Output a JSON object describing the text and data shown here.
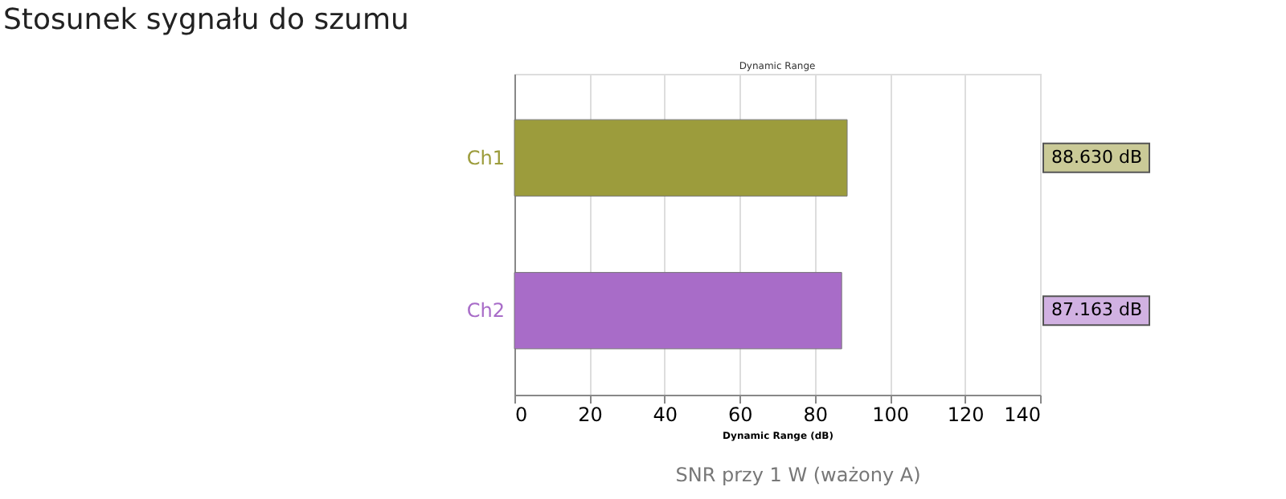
{
  "chart_data": {
    "type": "bar",
    "orientation": "horizontal",
    "title": "Stosunek sygnału do szumu",
    "subtitle": "Dynamic Range",
    "xlabel": "Dynamic Range (dB)",
    "categories": [
      "Ch1",
      "Ch2"
    ],
    "values": [
      88.63,
      87.163
    ],
    "colors": [
      "#9c9c3c",
      "#a86cc8"
    ],
    "value_labels": [
      "88.630 dB",
      "87.163 dB"
    ],
    "xlim": [
      0,
      140
    ],
    "xticks": [
      0,
      20,
      40,
      60,
      80,
      100,
      120,
      140
    ],
    "grid": "x",
    "annotations": [
      "SNR przy 1 W (ważony A)"
    ]
  }
}
